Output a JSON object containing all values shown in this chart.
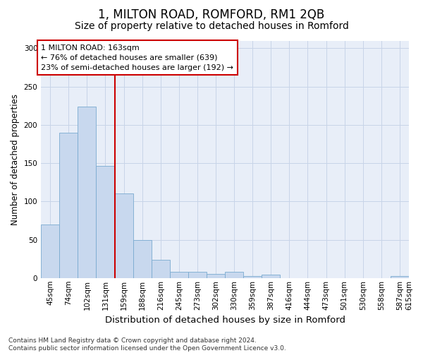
{
  "title": "1, MILTON ROAD, ROMFORD, RM1 2QB",
  "subtitle": "Size of property relative to detached houses in Romford",
  "xlabel": "Distribution of detached houses by size in Romford",
  "ylabel": "Number of detached properties",
  "bar_values": [
    70,
    190,
    224,
    146,
    110,
    50,
    24,
    8,
    8,
    5,
    8,
    3,
    4,
    0,
    0,
    0,
    0,
    0,
    0,
    3
  ],
  "bar_labels": [
    "45sqm",
    "74sqm",
    "102sqm",
    "131sqm",
    "159sqm",
    "188sqm",
    "216sqm",
    "245sqm",
    "273sqm",
    "302sqm",
    "330sqm",
    "359sqm",
    "387sqm",
    "416sqm",
    "444sqm",
    "473sqm",
    "501sqm",
    "530sqm",
    "558sqm",
    "587sqm",
    "615sqm"
  ],
  "bar_color": "#c8d8ee",
  "bar_edge_color": "#7aaad0",
  "vline_x": 4.0,
  "vline_color": "#cc0000",
  "annotation_text": "1 MILTON ROAD: 163sqm\n← 76% of detached houses are smaller (639)\n23% of semi-detached houses are larger (192) →",
  "annotation_box_facecolor": "#ffffff",
  "annotation_box_edgecolor": "#cc0000",
  "ylim": [
    0,
    310
  ],
  "yticks": [
    0,
    50,
    100,
    150,
    200,
    250,
    300
  ],
  "grid_color": "#c8d4e8",
  "bg_color": "#e8eef8",
  "footer_text": "Contains HM Land Registry data © Crown copyright and database right 2024.\nContains public sector information licensed under the Open Government Licence v3.0.",
  "title_fontsize": 12,
  "subtitle_fontsize": 10,
  "xlabel_fontsize": 9.5,
  "ylabel_fontsize": 8.5,
  "tick_fontsize": 7.5,
  "annotation_fontsize": 8,
  "footer_fontsize": 6.5
}
